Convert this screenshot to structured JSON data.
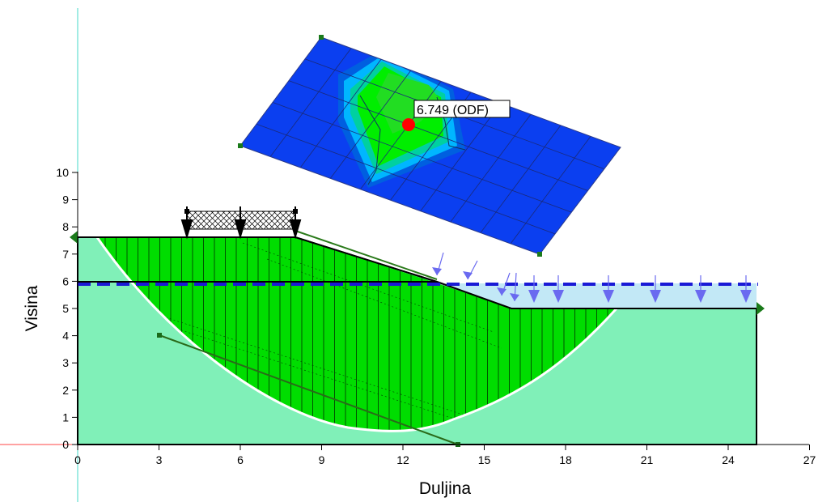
{
  "axes": {
    "x_label": "Duljina",
    "y_label": "Visina",
    "x_ticks": [
      0,
      3,
      6,
      9,
      12,
      15,
      18,
      21,
      24,
      27
    ],
    "y_ticks": [
      0,
      1,
      2,
      3,
      4,
      5,
      6,
      7,
      8,
      9,
      10
    ]
  },
  "result": {
    "factor_label": "6.749 (ODF)"
  },
  "colors": {
    "soil_lower": "#80f0b8",
    "slip_mass": "#00dd00",
    "water_pond": "#c2e8f6",
    "water_table": "#1a1ad6",
    "contour_low": "#0b3ff0",
    "contour_high": "#00ee00",
    "critical_point": "#ff0000"
  },
  "icons": {
    "surcharge_load": "crosshatch-surcharge-icon",
    "water_load_arrows": "water-pressure-arrows-icon",
    "boundary_markers": "boundary-triangle-icon"
  }
}
